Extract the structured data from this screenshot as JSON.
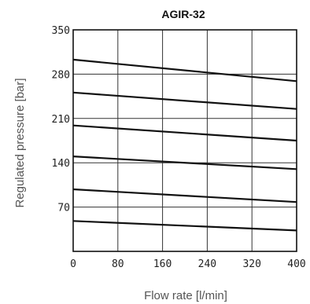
{
  "chart_data": {
    "type": "line",
    "title": "AGIR-32",
    "xlabel": "Flow rate [l/min]",
    "ylabel": "Regulated pressure [bar]",
    "xlim": [
      0,
      400
    ],
    "ylim": [
      0,
      350
    ],
    "xticks": [
      "0",
      "80",
      "160",
      "240",
      "320",
      "400"
    ],
    "yticks": [
      "70",
      "140",
      "210",
      "280",
      "350"
    ],
    "grid": true,
    "series": [
      {
        "x": [
          0,
          400
        ],
        "values": [
          303,
          269
        ]
      },
      {
        "x": [
          0,
          400
        ],
        "values": [
          251,
          225
        ]
      },
      {
        "x": [
          0,
          400
        ],
        "values": [
          199,
          175
        ]
      },
      {
        "x": [
          0,
          400
        ],
        "values": [
          150,
          130
        ]
      },
      {
        "x": [
          0,
          400
        ],
        "values": [
          98,
          78
        ]
      },
      {
        "x": [
          0,
          400
        ],
        "values": [
          48,
          33
        ]
      }
    ]
  }
}
